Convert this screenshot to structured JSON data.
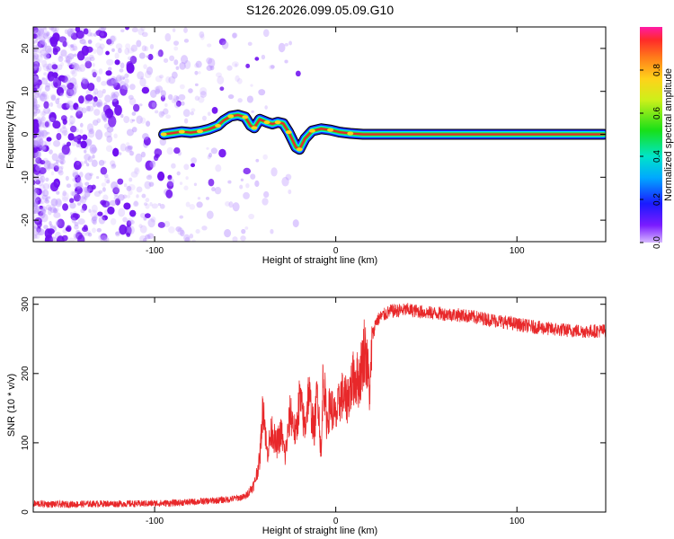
{
  "figure_title": "S126.2026.099.05.09.G10",
  "colors": {
    "snr_line": "#e8282a",
    "frame": "#000000",
    "noise": "#7b2bff",
    "track_core": "#e8282a",
    "track_edge": "#00e5ff"
  },
  "chart_data": [
    {
      "type": "heatmap",
      "name": "spectrogram",
      "title": "S126.2026.099.05.09.G10",
      "xlabel": "Height of straight line (km)",
      "ylabel": "Frequency (Hz)",
      "xlim": [
        -167,
        149
      ],
      "ylim": [
        -25,
        25
      ],
      "xticks": [
        -100,
        0,
        100
      ],
      "yticks": [
        -20,
        -10,
        0,
        10,
        20
      ],
      "track": [
        {
          "x": -95,
          "y": 0.0
        },
        {
          "x": -90,
          "y": 0.3
        },
        {
          "x": -85,
          "y": 0.6
        },
        {
          "x": -80,
          "y": 0.4
        },
        {
          "x": -75,
          "y": 0.7
        },
        {
          "x": -70,
          "y": 1.2
        },
        {
          "x": -65,
          "y": 2.0
        },
        {
          "x": -62,
          "y": 3.2
        },
        {
          "x": -58,
          "y": 4.2
        },
        {
          "x": -54,
          "y": 4.5
        },
        {
          "x": -50,
          "y": 4.0
        },
        {
          "x": -47,
          "y": 2.0
        },
        {
          "x": -45,
          "y": 1.5
        },
        {
          "x": -42,
          "y": 3.5
        },
        {
          "x": -38,
          "y": 2.8
        },
        {
          "x": -35,
          "y": 2.4
        },
        {
          "x": -32,
          "y": 2.8
        },
        {
          "x": -29,
          "y": 2.5
        },
        {
          "x": -26,
          "y": 0.5
        },
        {
          "x": -22,
          "y": -3.0
        },
        {
          "x": -20,
          "y": -3.5
        },
        {
          "x": -17,
          "y": -1.0
        },
        {
          "x": -13,
          "y": 0.8
        },
        {
          "x": -8,
          "y": 1.3
        },
        {
          "x": -3,
          "y": 1.0
        },
        {
          "x": 2,
          "y": 0.5
        },
        {
          "x": 8,
          "y": 0.2
        },
        {
          "x": 15,
          "y": 0.0
        },
        {
          "x": 40,
          "y": 0.0
        },
        {
          "x": 80,
          "y": 0.0
        },
        {
          "x": 120,
          "y": 0.0
        },
        {
          "x": 148,
          "y": 0.0
        }
      ],
      "colorbar": {
        "label": "Normalized spectral amplitude",
        "ticks": [
          0.0,
          0.2,
          0.4,
          0.6,
          0.8
        ],
        "tick_labels": [
          "0.0",
          "0.2",
          "0.4",
          "0.6",
          "0.8"
        ],
        "range": [
          0,
          1
        ]
      }
    },
    {
      "type": "line",
      "name": "snr",
      "xlabel": "Height of straight line (km)",
      "ylabel": "SNR (10 * v/v)",
      "xlim": [
        -167,
        149
      ],
      "ylim": [
        0,
        310
      ],
      "xticks": [
        -100,
        0,
        100
      ],
      "yticks": [
        0,
        100,
        200,
        300
      ],
      "series": [
        {
          "name": "SNR",
          "x": [
            -167,
            -150,
            -130,
            -110,
            -90,
            -70,
            -60,
            -50,
            -45,
            -42,
            -40,
            -38,
            -35,
            -33,
            -30,
            -28,
            -25,
            -22,
            -20,
            -17,
            -15,
            -12,
            -10,
            -8,
            -7,
            -5,
            -3,
            0,
            3,
            6,
            10,
            13,
            16,
            18,
            19,
            20,
            21,
            22,
            25,
            30,
            40,
            50,
            60,
            70,
            80,
            90,
            100,
            110,
            120,
            130,
            140,
            149
          ],
          "y": [
            12,
            11,
            12,
            12,
            13,
            16,
            18,
            22,
            40,
            75,
            160,
            85,
            120,
            95,
            115,
            80,
            145,
            110,
            165,
            120,
            175,
            115,
            180,
            75,
            205,
            130,
            155,
            135,
            170,
            160,
            195,
            190,
            240,
            195,
            170,
            255,
            260,
            275,
            282,
            290,
            292,
            288,
            286,
            284,
            280,
            276,
            271,
            267,
            264,
            262,
            261,
            262
          ]
        }
      ]
    }
  ]
}
